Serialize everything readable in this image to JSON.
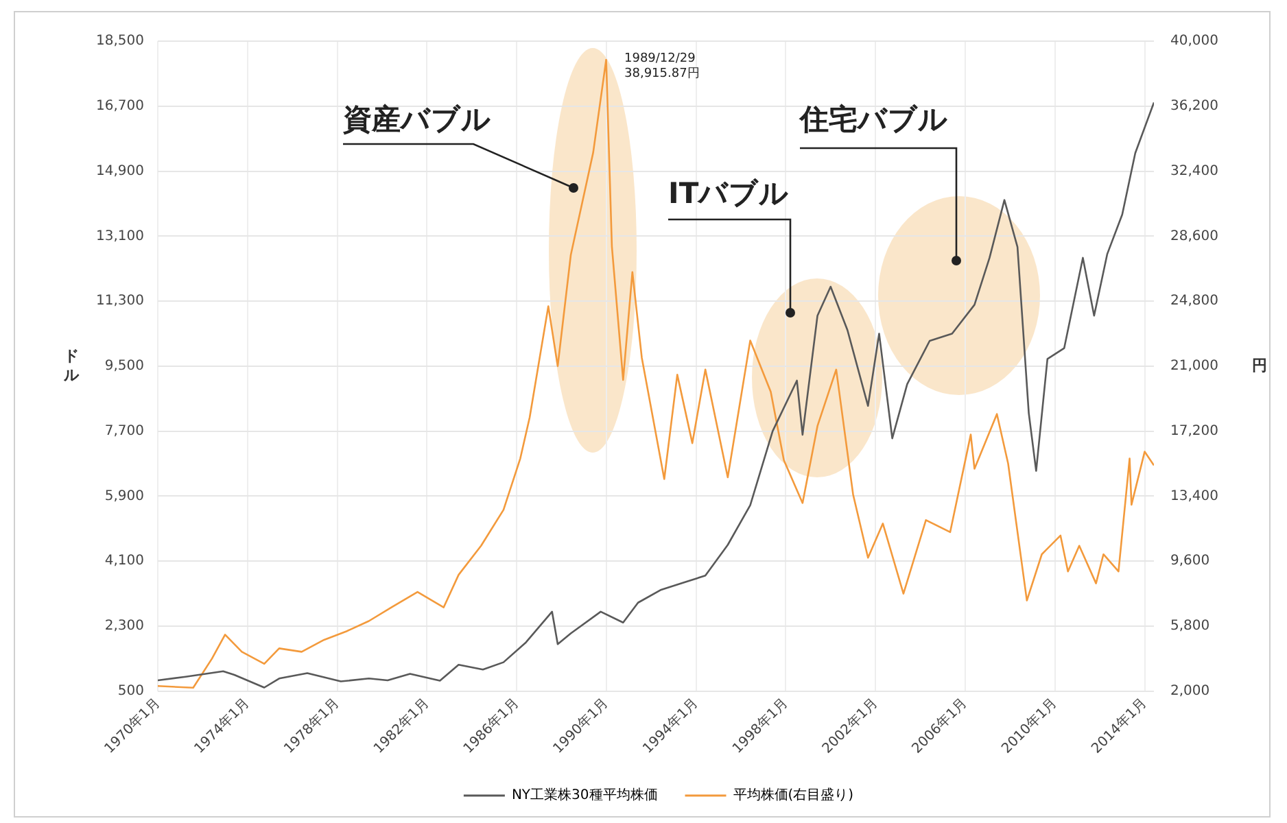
{
  "chart_data": {
    "type": "line",
    "ylabel": "ドル",
    "y2label": "円",
    "xlim": [
      "1970-01",
      "2014-06"
    ],
    "xticks": [
      {
        "value": "1970-01",
        "label": "1970年1月"
      },
      {
        "value": "1974-01",
        "label": "1974年1月"
      },
      {
        "value": "1978-01",
        "label": "1978年1月"
      },
      {
        "value": "1982-01",
        "label": "1982年1月"
      },
      {
        "value": "1986-01",
        "label": "1986年1月"
      },
      {
        "value": "1990-01",
        "label": "1990年1月"
      },
      {
        "value": "1994-01",
        "label": "1994年1月"
      },
      {
        "value": "1998-01",
        "label": "1998年1月"
      },
      {
        "value": "2002-01",
        "label": "2002年1月"
      },
      {
        "value": "2006-01",
        "label": "2006年1月"
      },
      {
        "value": "2010-01",
        "label": "2010年1月"
      },
      {
        "value": "2014-01",
        "label": "2014年1月"
      }
    ],
    "ylim": [
      500,
      18500
    ],
    "yticks": [
      {
        "value": 500,
        "label": "500"
      },
      {
        "value": 2300,
        "label": "2,300"
      },
      {
        "value": 4100,
        "label": "4,100"
      },
      {
        "value": 5900,
        "label": "5,900"
      },
      {
        "value": 7700,
        "label": "7,700"
      },
      {
        "value": 9500,
        "label": "9,500"
      },
      {
        "value": 11300,
        "label": "11,300"
      },
      {
        "value": 13100,
        "label": "13,100"
      },
      {
        "value": 14900,
        "label": "14,900"
      },
      {
        "value": 16700,
        "label": "16,700"
      },
      {
        "value": 18500,
        "label": "18,500"
      }
    ],
    "y2lim": [
      2000,
      40000
    ],
    "y2ticks": [
      {
        "value": 2000,
        "label": "2,000"
      },
      {
        "value": 5800,
        "label": "5,800"
      },
      {
        "value": 9600,
        "label": "9,600"
      },
      {
        "value": 13400,
        "label": "13,400"
      },
      {
        "value": 17200,
        "label": "17,200"
      },
      {
        "value": 21000,
        "label": "21,000"
      },
      {
        "value": 24800,
        "label": "24,800"
      },
      {
        "value": 28600,
        "label": "28,600"
      },
      {
        "value": 32400,
        "label": "32,400"
      },
      {
        "value": 36200,
        "label": "36,200"
      },
      {
        "value": 40000,
        "label": "40,000"
      }
    ],
    "grid": true,
    "legend": "bottom",
    "marker": "none",
    "line_style": "solid",
    "series": [
      {
        "name": "NY工業株30種平均株価",
        "color": "#595959",
        "x": [
          "1970-01",
          "1971-04",
          "1972-12",
          "1973-06",
          "1974-10",
          "1975-06",
          "1976-09",
          "1978-03",
          "1979-06",
          "1980-04",
          "1981-04",
          "1982-08",
          "1983-06",
          "1984-07",
          "1985-06",
          "1986-06",
          "1987-08",
          "1987-11",
          "1988-06",
          "1989-10",
          "1990-10",
          "1991-06",
          "1992-06",
          "1993-06",
          "1994-06",
          "1995-06",
          "1996-06",
          "1997-06",
          "1998-07",
          "1998-10",
          "1999-06",
          "2000-01",
          "2000-10",
          "2001-09",
          "2002-03",
          "2002-10",
          "2003-06",
          "2004-06",
          "2005-06",
          "2006-06",
          "2007-02",
          "2007-10",
          "2008-05",
          "2008-11",
          "2009-03",
          "2009-09",
          "2010-06",
          "2011-04",
          "2011-10",
          "2012-05",
          "2013-01",
          "2013-08",
          "2014-06"
        ],
        "values": [
          800,
          900,
          1050,
          950,
          600,
          850,
          1000,
          770,
          850,
          800,
          980,
          790,
          1230,
          1100,
          1300,
          1850,
          2700,
          1800,
          2100,
          2700,
          2400,
          2950,
          3300,
          3500,
          3700,
          4550,
          5650,
          7700,
          9100,
          7600,
          10900,
          11700,
          10500,
          8400,
          10400,
          7500,
          9000,
          10200,
          10400,
          11200,
          12500,
          14100,
          12800,
          8200,
          6600,
          9700,
          10000,
          12500,
          10900,
          12600,
          13700,
          15400,
          16800
        ]
      },
      {
        "name": "平均株価(右目盛り)",
        "color": "#f39a3c",
        "axis": "y2",
        "x": [
          "1970-01",
          "1971-08",
          "1972-06",
          "1973-01",
          "1973-10",
          "1974-10",
          "1975-06",
          "1976-06",
          "1977-06",
          "1978-06",
          "1979-06",
          "1980-06",
          "1981-08",
          "1982-10",
          "1983-06",
          "1984-06",
          "1985-06",
          "1986-03",
          "1986-08",
          "1987-06",
          "1987-11",
          "1988-06",
          "1989-06",
          "1989-12-29",
          "1990-04",
          "1990-10",
          "1991-03",
          "1991-08",
          "1992-08",
          "1993-03",
          "1993-11",
          "1994-06",
          "1995-06",
          "1996-06",
          "1997-05",
          "1997-12",
          "1998-10",
          "1999-06",
          "2000-04",
          "2001-01",
          "2001-09",
          "2002-05",
          "2003-04",
          "2004-04",
          "2005-05",
          "2006-04",
          "2006-06",
          "2007-06",
          "2007-12",
          "2008-10",
          "2009-06",
          "2010-04",
          "2010-08",
          "2011-02",
          "2011-11",
          "2012-03",
          "2012-11",
          "2013-05",
          "2013-06",
          "2014-01",
          "2014-06"
        ],
        "values": [
          2300,
          2200,
          3900,
          5300,
          4300,
          3600,
          4500,
          4300,
          5000,
          5500,
          6100,
          6900,
          7800,
          6900,
          8800,
          10500,
          12600,
          15600,
          18000,
          24500,
          21000,
          27500,
          33500,
          38915.87,
          28000,
          20200,
          26500,
          21500,
          14400,
          20500,
          16500,
          20800,
          14500,
          22500,
          19500,
          15500,
          13000,
          17500,
          20800,
          13500,
          9800,
          11800,
          7700,
          12000,
          11300,
          17000,
          15000,
          18200,
          15300,
          7300,
          10000,
          11100,
          9000,
          10500,
          8300,
          10000,
          9000,
          15600,
          12900,
          16000,
          15200
        ]
      }
    ],
    "annotations": [
      "資産バブル",
      "ITバブル",
      "住宅バブル",
      "1989/12/29\n38,915.87円"
    ]
  }
}
